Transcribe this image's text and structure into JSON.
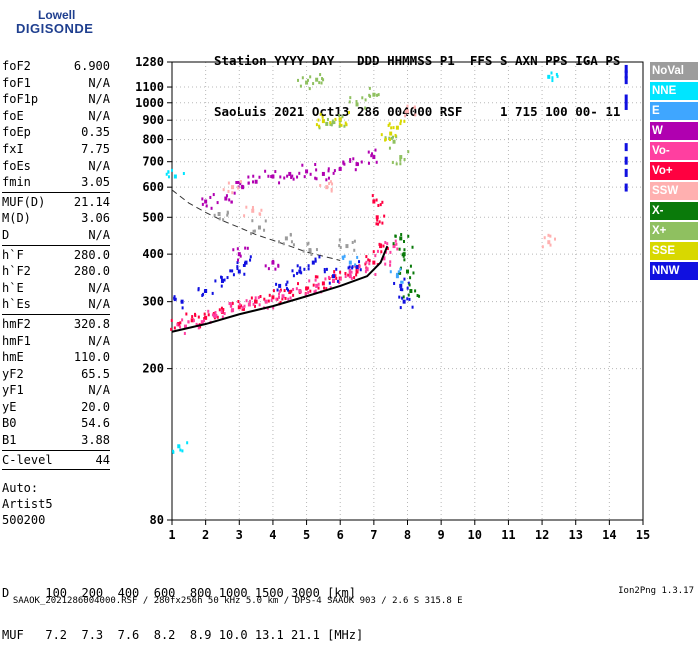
{
  "logo": {
    "line1": "Lowell",
    "line2": "DIGISONDE"
  },
  "header": {
    "line1": "Station YYYY DAY   DDD HHMMSS P1  FFS S AXN PPS IGA PS",
    "line2": "SaoLuis 2021 Oct13 286 004000 RSF     1 715 100 00- 11"
  },
  "params": [
    {
      "key": "foF2",
      "value": "6.900"
    },
    {
      "key": "foF1",
      "value": "N/A"
    },
    {
      "key": "foF1p",
      "value": "N/A"
    },
    {
      "key": "foE",
      "value": "N/A"
    },
    {
      "key": "foEp",
      "value": "0.35"
    },
    {
      "key": "fxI",
      "value": "7.75"
    },
    {
      "key": "foEs",
      "value": "N/A"
    },
    {
      "key": "fmin",
      "value": "3.05",
      "sep": true
    },
    {
      "key": "MUF(D)",
      "value": "21.14"
    },
    {
      "key": "M(D)",
      "value": "3.06"
    },
    {
      "key": "D",
      "value": "N/A",
      "sep": true
    },
    {
      "key": "h`F",
      "value": "280.0"
    },
    {
      "key": "h`F2",
      "value": "280.0"
    },
    {
      "key": "h`E",
      "value": "N/A"
    },
    {
      "key": "h`Es",
      "value": "N/A",
      "sep": true
    },
    {
      "key": "hmF2",
      "value": "320.8"
    },
    {
      "key": "hmF1",
      "value": "N/A"
    },
    {
      "key": "hmE",
      "value": "110.0"
    },
    {
      "key": "yF2",
      "value": "65.5"
    },
    {
      "key": "yF1",
      "value": "N/A"
    },
    {
      "key": "yE",
      "value": "20.0"
    },
    {
      "key": "B0",
      "value": "54.6"
    },
    {
      "key": "B1",
      "value": "3.88",
      "sep": true
    },
    {
      "key": "C-level",
      "value": "44",
      "sep": true
    }
  ],
  "auto": {
    "line1": "Auto:",
    "line2": "Artist5",
    "line3": "500200"
  },
  "legend": [
    {
      "label": "NoVal",
      "color": "#9c9c9c"
    },
    {
      "label": "NNE",
      "color": "#00e5ff"
    },
    {
      "label": "E",
      "color": "#3fa6ff"
    },
    {
      "label": "W",
      "color": "#b000b0"
    },
    {
      "label": "Vo-",
      "color": "#ff3fa0"
    },
    {
      "label": "Vo+",
      "color": "#ff0040"
    },
    {
      "label": "SSW",
      "color": "#ffb0b0"
    },
    {
      "label": "X-",
      "color": "#0a7a0a"
    },
    {
      "label": "X+",
      "color": "#8fc060"
    },
    {
      "label": "SSE",
      "color": "#d8d800"
    },
    {
      "label": "NNW",
      "color": "#1010e0"
    }
  ],
  "dmuf": {
    "line1": "D     100  200  400  600  800 1000 1500 3000 [km]",
    "line2": "MUF   7.2  7.3  7.6  8.2  8.9 10.0 13.1 21.1 [MHz]"
  },
  "footer": {
    "text": "SAAOK_2021286004000.RSF / 280fx256h 50 kHz 5.0 km / DPS-4 SAAOK 903 / 2.6 S 315.8 E",
    "version": "Ion2Png 1.3.17"
  },
  "chart_data": {
    "type": "scatter",
    "title": "",
    "xlabel": "",
    "ylabel": "",
    "xlim": [
      1,
      15
    ],
    "ylim": [
      80,
      1280
    ],
    "y_scale": "log",
    "x_ticks": [
      1,
      2,
      3,
      4,
      5,
      6,
      7,
      8,
      9,
      10,
      11,
      12,
      13,
      14,
      15
    ],
    "y_ticks": [
      80,
      200,
      300,
      400,
      500,
      600,
      700,
      800,
      900,
      1000,
      1100,
      1280
    ],
    "grid": true,
    "legend_placement": "right",
    "series": [
      {
        "color": "#ff0040",
        "points": [
          [
            1.2,
            262
          ],
          [
            1.6,
            268
          ],
          [
            2.0,
            272
          ],
          [
            2.5,
            282
          ],
          [
            3.0,
            290
          ],
          [
            3.5,
            300
          ],
          [
            4.0,
            308
          ],
          [
            4.5,
            318
          ],
          [
            5.0,
            325
          ],
          [
            5.5,
            335
          ],
          [
            6.0,
            345
          ],
          [
            6.5,
            360
          ],
          [
            7.0,
            380
          ],
          [
            7.2,
            420
          ],
          [
            7.1,
            500
          ],
          [
            7.0,
            550
          ]
        ]
      },
      {
        "color": "#ff3fa0",
        "points": [
          [
            1.4,
            258
          ],
          [
            1.9,
            265
          ],
          [
            2.3,
            275
          ],
          [
            2.8,
            285
          ],
          [
            3.3,
            295
          ],
          [
            3.8,
            300
          ],
          [
            4.3,
            310
          ],
          [
            4.8,
            320
          ],
          [
            5.3,
            330
          ],
          [
            5.8,
            340
          ],
          [
            6.3,
            350
          ],
          [
            6.8,
            365
          ],
          [
            7.3,
            390
          ],
          [
            7.6,
            420
          ]
        ]
      },
      {
        "color": "#1010e0",
        "points": [
          [
            1.3,
            300
          ],
          [
            2.0,
            320
          ],
          [
            2.5,
            340
          ],
          [
            3.0,
            360
          ],
          [
            3.2,
            380
          ],
          [
            4.2,
            330
          ],
          [
            4.8,
            360
          ],
          [
            5.2,
            380
          ],
          [
            5.8,
            350
          ],
          [
            6.5,
            370
          ],
          [
            7.8,
            330
          ],
          [
            7.9,
            300
          ]
        ]
      },
      {
        "color": "#b000b0",
        "points": [
          [
            2.0,
            550
          ],
          [
            2.6,
            560
          ],
          [
            3.1,
            600
          ],
          [
            3.5,
            620
          ],
          [
            4.0,
            640
          ],
          [
            4.5,
            650
          ],
          [
            5.0,
            660
          ],
          [
            5.5,
            650
          ],
          [
            6.0,
            670
          ],
          [
            6.5,
            690
          ],
          [
            7.0,
            720
          ],
          [
            3.0,
            400
          ],
          [
            4.0,
            380
          ]
        ]
      },
      {
        "color": "#8fc060",
        "points": [
          [
            5.0,
            1130
          ],
          [
            5.3,
            1150
          ],
          [
            5.6,
            880
          ],
          [
            6.0,
            900
          ],
          [
            6.5,
            990
          ],
          [
            7.0,
            1050
          ],
          [
            7.6,
            790
          ],
          [
            7.8,
            720
          ]
        ]
      },
      {
        "color": "#0a7a0a",
        "points": [
          [
            7.8,
            440
          ],
          [
            7.9,
            400
          ],
          [
            8.0,
            360
          ],
          [
            8.1,
            320
          ]
        ]
      },
      {
        "color": "#d8d800",
        "points": [
          [
            5.5,
            895
          ],
          [
            6.0,
            905
          ],
          [
            7.5,
            830
          ],
          [
            7.7,
            860
          ]
        ]
      },
      {
        "color": "#9c9c9c",
        "points": [
          [
            2.4,
            510
          ],
          [
            3.6,
            470
          ],
          [
            4.4,
            440
          ],
          [
            5.1,
            410
          ],
          [
            6.2,
            420
          ]
        ]
      },
      {
        "color": "#ffb0b0",
        "points": [
          [
            2.8,
            600
          ],
          [
            3.4,
            520
          ],
          [
            5.6,
            600
          ],
          [
            8.0,
            950
          ],
          [
            12.2,
            430
          ]
        ]
      },
      {
        "color": "#00e5ff",
        "points": [
          [
            1.1,
            640
          ],
          [
            1.2,
            125
          ],
          [
            12.2,
            1170
          ]
        ]
      },
      {
        "color": "#3fa6ff",
        "points": [
          [
            6.3,
            380
          ],
          [
            7.7,
            350
          ]
        ]
      }
    ],
    "trace": {
      "points": [
        [
          1.0,
          250
        ],
        [
          2.0,
          262
        ],
        [
          3.0,
          278
        ],
        [
          4.0,
          292
        ],
        [
          5.0,
          310
        ],
        [
          6.0,
          330
        ],
        [
          6.8,
          350
        ],
        [
          7.2,
          380
        ],
        [
          7.4,
          420
        ]
      ]
    },
    "dashed_curve": {
      "points": [
        [
          1.0,
          590
        ],
        [
          1.5,
          545
        ],
        [
          2.0,
          515
        ],
        [
          2.5,
          490
        ],
        [
          3.0,
          470
        ],
        [
          3.5,
          450
        ],
        [
          4.0,
          435
        ],
        [
          4.5,
          420
        ],
        [
          5.0,
          405
        ],
        [
          5.5,
          395
        ],
        [
          6.0,
          385
        ]
      ]
    },
    "nnw_marks": [
      [
        14.5,
        1220
      ],
      [
        14.5,
        1180
      ],
      [
        14.5,
        1140
      ],
      [
        14.5,
        1020
      ],
      [
        14.5,
        975
      ],
      [
        14.5,
        760
      ],
      [
        14.5,
        700
      ],
      [
        14.5,
        650
      ],
      [
        14.5,
        595
      ]
    ]
  }
}
